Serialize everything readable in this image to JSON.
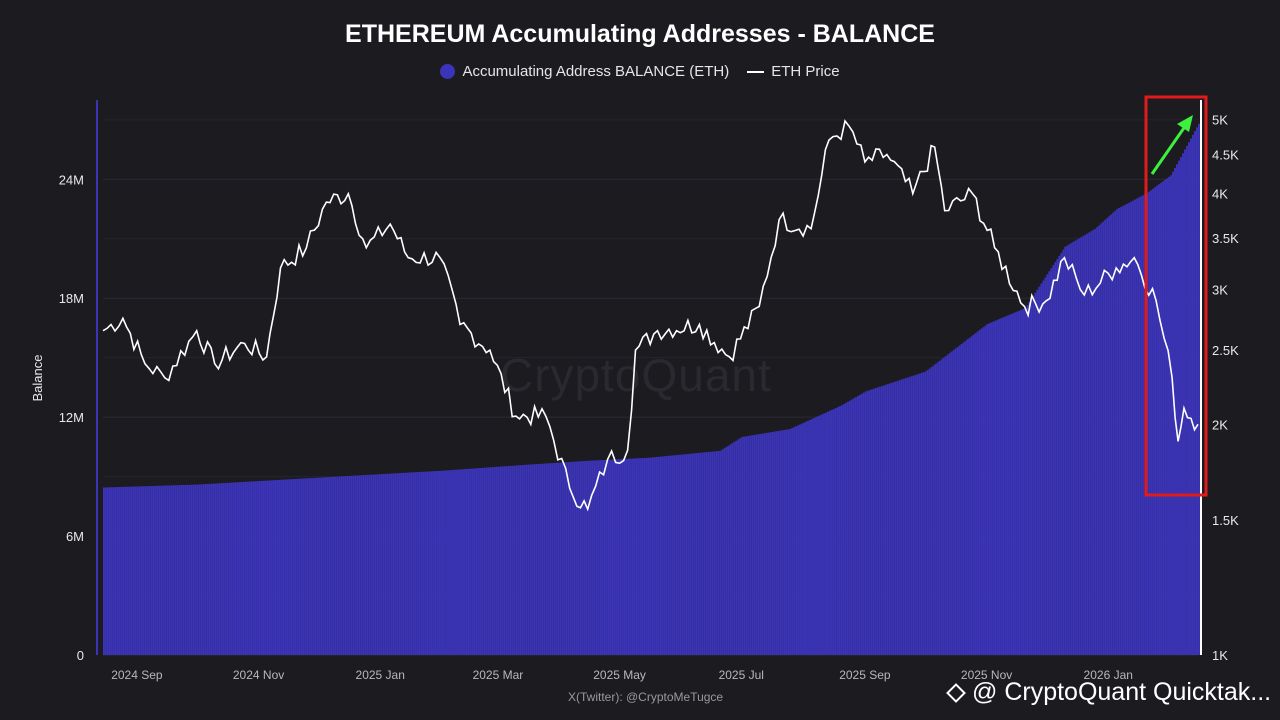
{
  "chart_data": {
    "type": "bar",
    "title": "ETHEREUM Accumulating Addresses - BALANCE",
    "ylabel": "Balance",
    "ylim": [
      0,
      28000000
    ],
    "y2lim_log": [
      1000,
      5300
    ],
    "y_ticks": [
      "0",
      "6M",
      "12M",
      "18M",
      "24M"
    ],
    "y2_ticks": [
      "1K",
      "1.5K",
      "2K",
      "2.5K",
      "3K",
      "3.5K",
      "4K",
      "4.5K",
      "5K"
    ],
    "x_ticks": [
      "2024 Sep",
      "2024 Nov",
      "2025 Jan",
      "2025 Mar",
      "2025 May",
      "2025 Jul",
      "2025 Sep",
      "2025 Nov",
      "2026 Jan"
    ],
    "x_range": [
      "2024-08-15",
      "2026-02-15"
    ],
    "grid": true,
    "legend_position": "top-center",
    "series": [
      {
        "name": "Accumulating Address BALANCE (ETH)",
        "color": "#3b34b8",
        "points": [
          [
            "2024-08-15",
            8450000
          ],
          [
            "2024-10-01",
            8600000
          ],
          [
            "2024-12-01",
            8950000
          ],
          [
            "2025-02-01",
            9300000
          ],
          [
            "2025-03-15",
            9600000
          ],
          [
            "2025-04-15",
            9800000
          ],
          [
            "2025-05-15",
            9950000
          ],
          [
            "2025-06-20",
            10300000
          ],
          [
            "2025-07-01",
            11000000
          ],
          [
            "2025-07-25",
            11400000
          ],
          [
            "2025-08-20",
            12600000
          ],
          [
            "2025-09-01",
            13300000
          ],
          [
            "2025-10-01",
            14300000
          ],
          [
            "2025-11-01",
            16700000
          ],
          [
            "2025-11-20",
            17500000
          ],
          [
            "2025-12-10",
            20600000
          ],
          [
            "2025-12-25",
            21500000
          ],
          [
            "2026-01-05",
            22500000
          ],
          [
            "2026-01-20",
            23300000
          ],
          [
            "2026-02-01",
            24200000
          ],
          [
            "2026-02-15",
            26800000
          ]
        ]
      },
      {
        "name": "ETH Price",
        "color": "#ffffff",
        "points": [
          [
            "2024-08-15",
            2650
          ],
          [
            "2024-08-25",
            2750
          ],
          [
            "2024-09-05",
            2400
          ],
          [
            "2024-09-15",
            2300
          ],
          [
            "2024-10-01",
            2650
          ],
          [
            "2024-10-10",
            2400
          ],
          [
            "2024-10-25",
            2550
          ],
          [
            "2024-11-05",
            2450
          ],
          [
            "2024-11-12",
            3200
          ],
          [
            "2024-11-25",
            3400
          ],
          [
            "2024-12-05",
            3900
          ],
          [
            "2024-12-16",
            4000
          ],
          [
            "2024-12-25",
            3400
          ],
          [
            "2025-01-06",
            3650
          ],
          [
            "2025-01-15",
            3300
          ],
          [
            "2025-01-31",
            3300
          ],
          [
            "2025-02-10",
            2700
          ],
          [
            "2025-02-25",
            2500
          ],
          [
            "2025-03-10",
            2050
          ],
          [
            "2025-03-25",
            2050
          ],
          [
            "2025-04-06",
            1650
          ],
          [
            "2025-04-15",
            1550
          ],
          [
            "2025-04-25",
            1800
          ],
          [
            "2025-05-05",
            1850
          ],
          [
            "2025-05-09",
            2500
          ],
          [
            "2025-05-20",
            2650
          ],
          [
            "2025-06-10",
            2700
          ],
          [
            "2025-06-25",
            2450
          ],
          [
            "2025-07-10",
            2850
          ],
          [
            "2025-07-20",
            3700
          ],
          [
            "2025-08-05",
            3600
          ],
          [
            "2025-08-14",
            4700
          ],
          [
            "2025-08-24",
            4900
          ],
          [
            "2025-09-01",
            4400
          ],
          [
            "2025-09-12",
            4500
          ],
          [
            "2025-09-25",
            4000
          ],
          [
            "2025-10-06",
            4600
          ],
          [
            "2025-10-11",
            3800
          ],
          [
            "2025-10-25",
            4000
          ],
          [
            "2025-11-05",
            3400
          ],
          [
            "2025-11-20",
            2850
          ],
          [
            "2025-12-01",
            2900
          ],
          [
            "2025-12-10",
            3300
          ],
          [
            "2025-12-20",
            2950
          ],
          [
            "2026-01-05",
            3200
          ],
          [
            "2026-01-14",
            3300
          ],
          [
            "2026-01-25",
            2900
          ],
          [
            "2026-02-02",
            2300
          ],
          [
            "2026-02-05",
            1900
          ],
          [
            "2026-02-08",
            2100
          ],
          [
            "2026-02-15",
            2000
          ]
        ]
      }
    ]
  },
  "credit": "X(Twitter): @CryptoMeTugce",
  "watermark": "CryptoQuant",
  "brand": "@ CryptoQuant Quicktak...",
  "colors": {
    "background": "#1c1b20",
    "bars": "#3b34b8",
    "highlight_box": "#e01b1b",
    "arrow": "#3df03d"
  }
}
